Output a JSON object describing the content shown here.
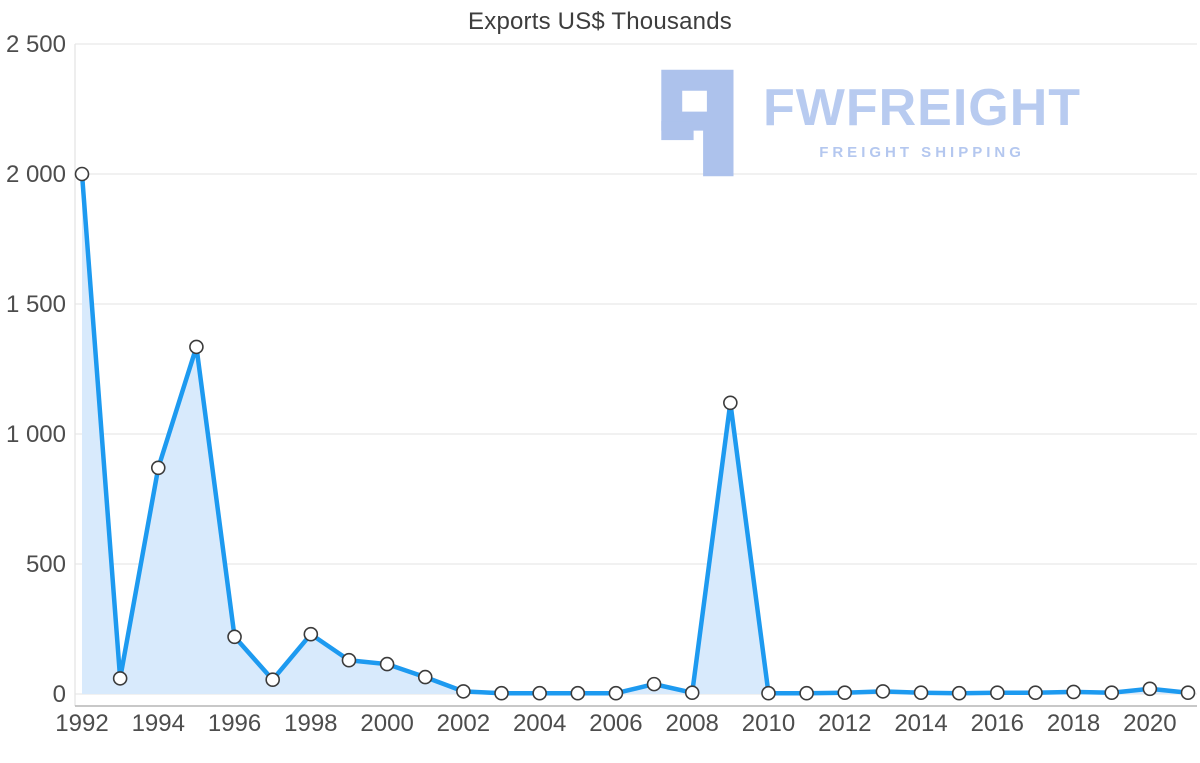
{
  "chart_data": {
    "type": "area",
    "title": "Exports US$ Thousands",
    "x": [
      1992,
      1993,
      1994,
      1995,
      1996,
      1997,
      1998,
      1999,
      2000,
      2001,
      2002,
      2003,
      2004,
      2005,
      2006,
      2007,
      2008,
      2009,
      2010,
      2011,
      2012,
      2013,
      2014,
      2015,
      2016,
      2017,
      2018,
      2019,
      2020,
      2021
    ],
    "values": [
      2000,
      60,
      870,
      1335,
      220,
      55,
      230,
      130,
      115,
      65,
      10,
      3,
      3,
      3,
      3,
      38,
      5,
      1120,
      3,
      3,
      5,
      10,
      5,
      3,
      5,
      5,
      8,
      5,
      20,
      5
    ],
    "xlabel": "",
    "ylabel": "",
    "ylim": [
      0,
      2500
    ],
    "yticks": [
      0,
      500,
      1000,
      1500,
      2000,
      2500
    ],
    "ytick_labels": [
      "0",
      "500",
      "1 000",
      "1 500",
      "2 000",
      "2 500"
    ],
    "xticks": [
      1992,
      1994,
      1996,
      1998,
      2000,
      2002,
      2004,
      2006,
      2008,
      2010,
      2012,
      2014,
      2016,
      2018,
      2020
    ],
    "grid": true,
    "legend_position": "none",
    "line_color": "#1d9af0",
    "fill_color": "#d8eafc",
    "marker_fill": "#ffffff",
    "marker_stroke": "#3b3b3b",
    "grid_color": "#e3e3e3",
    "axis_color": "#b5b5b5",
    "tick_label_color": "#4d4d4d"
  },
  "watermark": {
    "brand": "FWFREIGHT",
    "tagline": "FREIGHT SHIPPING",
    "color": "#b5c9f0"
  }
}
